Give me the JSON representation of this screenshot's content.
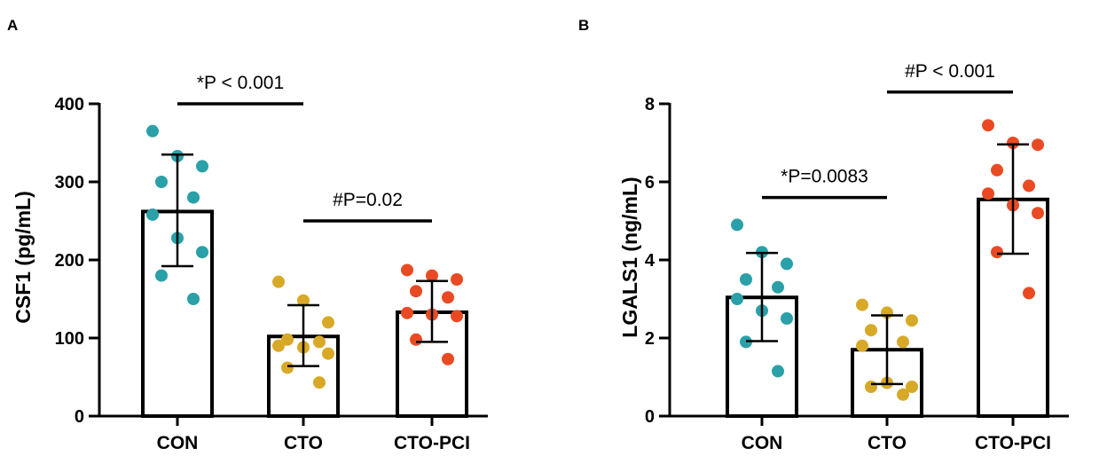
{
  "chart_data": [
    {
      "panel": "A",
      "type": "bar",
      "ylabel": "CSF1 (pg/mL)",
      "ylim": [
        0,
        400
      ],
      "yticks": [
        0,
        100,
        200,
        300,
        400
      ],
      "categories": [
        "CON",
        "CTO",
        "CTO-PCI"
      ],
      "means": [
        262,
        102,
        133
      ],
      "sd": [
        [
          192,
          335
        ],
        [
          64,
          142
        ],
        [
          95,
          173
        ]
      ],
      "colors": {
        "CON": "#2aa0a8",
        "CTO": "#d8a927",
        "CTO-PCI": "#ea4a23"
      },
      "points": [
        [
          365,
          333,
          320,
          300,
          280,
          258,
          228,
          210,
          180,
          150
        ],
        [
          172,
          148,
          120,
          98,
          95,
          90,
          88,
          80,
          62,
          43
        ],
        [
          187,
          180,
          175,
          160,
          152,
          132,
          130,
          128,
          98,
          73
        ]
      ],
      "annotations": [
        {
          "text": "*P < 0.001",
          "from": 0,
          "to": 1,
          "y": 400
        },
        {
          "text": "#P=0.02",
          "from": 1,
          "to": 2,
          "y": 250
        }
      ]
    },
    {
      "panel": "B",
      "type": "bar",
      "ylabel": "LGALS1 (ng/mL)",
      "ylim": [
        0,
        8
      ],
      "yticks": [
        0,
        2,
        4,
        6,
        8
      ],
      "categories": [
        "CON",
        "CTO",
        "CTO-PCI"
      ],
      "means": [
        3.04,
        1.7,
        5.55
      ],
      "sd": [
        [
          1.92,
          4.18
        ],
        [
          0.82,
          2.58
        ],
        [
          4.16,
          6.96
        ]
      ],
      "colors": {
        "CON": "#2aa0a8",
        "CTO": "#d8a927",
        "CTO-PCI": "#ea4a23"
      },
      "points": [
        [
          4.9,
          4.2,
          3.9,
          3.5,
          3.3,
          3.0,
          2.7,
          2.5,
          1.9,
          1.15
        ],
        [
          2.85,
          2.65,
          2.45,
          2.2,
          1.9,
          1.8,
          0.85,
          0.75,
          0.75,
          0.55
        ],
        [
          7.45,
          7.0,
          6.95,
          6.3,
          5.9,
          5.7,
          5.4,
          5.2,
          4.2,
          3.15
        ]
      ],
      "annotations": [
        {
          "text": "*P=0.0083",
          "from": 0,
          "to": 1,
          "y": 5.6
        },
        {
          "text": "#P < 0.001",
          "from": 1,
          "to": 2,
          "y": 8.3
        }
      ]
    }
  ]
}
